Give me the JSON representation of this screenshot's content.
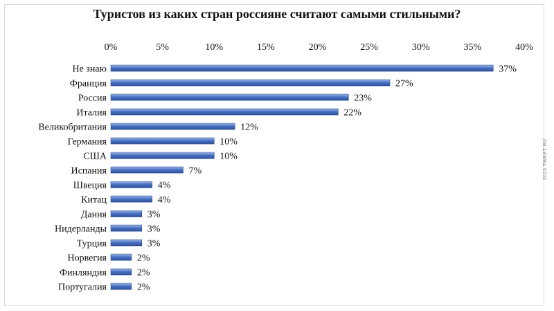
{
  "chart_data": {
    "type": "bar",
    "orientation": "horizontal",
    "title": "Туристов из каких стран россияне считают самыми стильными?",
    "categories": [
      "Не знаю",
      "Франция",
      "Россия",
      "Италия",
      "Великобритания",
      "Германия",
      "США",
      "Испания",
      "Швеция",
      "Китац",
      "Дания",
      "Нидерланды",
      "Турция",
      "Норвегия",
      "Финляндия",
      "Португалия"
    ],
    "values": [
      37,
      27,
      23,
      22,
      12,
      10,
      10,
      7,
      4,
      4,
      3,
      3,
      3,
      2,
      2,
      2
    ],
    "value_labels": [
      "37%",
      "27%",
      "23%",
      "22%",
      "12%",
      "10%",
      "10%",
      "7%",
      "4%",
      "4%",
      "3%",
      "3%",
      "3%",
      "2%",
      "2%",
      "2%"
    ],
    "x_ticks": [
      "0%",
      "5%",
      "10%",
      "15%",
      "20%",
      "25%",
      "30%",
      "35%",
      "40%"
    ],
    "xlim": [
      0,
      40
    ],
    "axis_position": "top",
    "grid": false,
    "bar_color": "#4a72c4"
  },
  "watermark": "2015 TWEET.RU"
}
